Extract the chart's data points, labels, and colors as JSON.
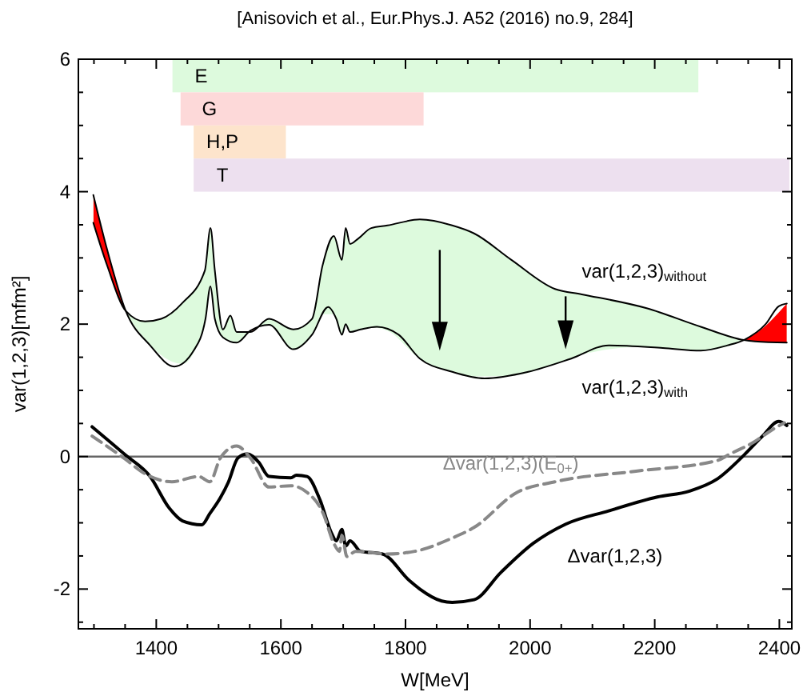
{
  "chart_data": {
    "type": "line",
    "title": "[Anisovich et al., Eur.Phys.J. A52 (2016) no.9, 284]",
    "xlabel": "W[MeV]",
    "ylabel": "var(1,2,3)[mfm²]",
    "xlim": [
      1275,
      2420
    ],
    "ylim": [
      -2.6,
      6
    ],
    "xticks": [
      {
        "value": 1300,
        "label": null
      },
      {
        "value": 1350,
        "label": null
      },
      1400,
      {
        "value": 1450,
        "label": null
      },
      {
        "value": 1500,
        "label": null
      },
      {
        "value": 1550,
        "label": null
      },
      1600,
      {
        "value": 1650,
        "label": null
      },
      {
        "value": 1700,
        "label": null
      },
      {
        "value": 1750,
        "label": null
      },
      1800,
      {
        "value": 1850,
        "label": null
      },
      {
        "value": 1900,
        "label": null
      },
      {
        "value": 1950,
        "label": null
      },
      2000,
      {
        "value": 2050,
        "label": null
      },
      {
        "value": 2100,
        "label": null
      },
      {
        "value": 2150,
        "label": null
      },
      2200,
      {
        "value": 2250,
        "label": null
      },
      {
        "value": 2300,
        "label": null
      },
      {
        "value": 2350,
        "label": null
      },
      2400
    ],
    "yticks": [
      {
        "value": -2.5,
        "label": null
      },
      -2,
      {
        "value": -1.5,
        "label": null
      },
      {
        "value": -1,
        "label": null
      },
      {
        "value": -0.5,
        "label": null
      },
      0,
      {
        "value": 0.5,
        "label": null
      },
      {
        "value": 1,
        "label": null
      },
      {
        "value": 1.5,
        "label": null
      },
      2,
      {
        "value": 2.5,
        "label": null
      },
      {
        "value": 3,
        "label": null
      },
      {
        "value": 3.5,
        "label": null
      },
      4,
      {
        "value": 4.5,
        "label": null
      },
      {
        "value": 5,
        "label": null
      },
      {
        "value": 5.5,
        "label": null
      },
      6
    ],
    "grid": false,
    "legend": false,
    "marker": "none",
    "ref_lines": [
      {
        "axis": "y",
        "value": 0,
        "color": "#666666"
      }
    ],
    "bands": [
      {
        "axis": "x",
        "from": 1426,
        "to": 2270,
        "label": "E",
        "color": "#ddfadd"
      },
      {
        "axis": "x",
        "from": 1439,
        "to": 1829,
        "label": "G",
        "color": "#fdd9d9"
      },
      {
        "axis": "x",
        "from": 1460,
        "to": 1608,
        "label": "H,P",
        "color": "#fde4cc"
      },
      {
        "axis": "x",
        "from": 1460,
        "to": 2416,
        "label": "T",
        "color": "#ede0ef"
      }
    ],
    "series": [
      {
        "name": "var(1,2,3)$_{without}$",
        "color": "#000000",
        "line_style": "solid",
        "x": [
          1299,
          1321,
          1351,
          1382,
          1408,
          1442,
          1478,
          1487,
          1494,
          1507,
          1519,
          1529,
          1551,
          1581,
          1620,
          1650,
          1667,
          1685,
          1698,
          1704,
          1711,
          1724,
          1745,
          1771,
          1823,
          1875,
          1910,
          1970,
          2040,
          2083,
          2187,
          2274,
          2343,
          2361,
          2412
        ],
        "values": [
          3.53,
          2.89,
          2.2,
          2.04,
          2.08,
          2.32,
          2.81,
          3.45,
          2.81,
          1.92,
          2.13,
          1.88,
          1.88,
          2.08,
          1.92,
          2.08,
          2.89,
          3.33,
          2.97,
          3.45,
          3.21,
          3.29,
          3.45,
          3.49,
          3.58,
          3.49,
          3.37,
          2.97,
          2.53,
          2.45,
          2.24,
          1.96,
          1.76,
          1.74,
          1.72
        ],
        "upper": [
          3.53,
          2.89,
          2.2,
          2.04,
          2.08,
          2.32,
          2.81,
          3.45,
          2.81,
          1.92,
          2.13,
          1.88,
          1.88,
          2.08,
          1.92,
          2.08,
          2.89,
          3.33,
          2.97,
          3.45,
          3.21,
          3.29,
          3.45,
          3.49,
          3.58,
          3.49,
          3.37,
          2.97,
          2.53,
          2.45,
          2.24,
          1.96,
          1.76,
          1.74,
          1.72
        ],
        "lower": [
          3.95,
          3.13,
          2.2,
          1.78,
          1.53,
          1.4,
          2.06,
          2.57,
          2.08,
          1.8,
          1.75,
          1.72,
          1.88,
          1.99,
          1.62,
          1.84,
          2.15,
          2.15,
          1.84,
          2.0,
          1.88,
          1.91,
          1.95,
          1.9,
          1.48,
          1.28,
          1.21,
          1.22,
          1.4,
          1.54,
          1.66,
          1.6,
          1.76,
          1.85,
          2.31
        ]
      },
      {
        "name": "var(1,2,3)$_{with}$",
        "color": "#000000",
        "line_style": "solid",
        "x": [
          1299,
          1321,
          1351,
          1390,
          1429,
          1460,
          1479,
          1487,
          1494,
          1507,
          1529,
          1551,
          1581,
          1620,
          1650,
          1676,
          1689,
          1698,
          1704,
          1711,
          1728,
          1754,
          1789,
          1823,
          1875,
          1927,
          1997,
          2066,
          2126,
          2213,
          2274,
          2317,
          2343,
          2378,
          2399,
          2412
        ],
        "values": [
          3.95,
          3.13,
          2.2,
          1.68,
          1.36,
          1.6,
          2.08,
          2.57,
          2.08,
          1.8,
          1.72,
          1.9,
          1.99,
          1.62,
          1.84,
          2.26,
          2.08,
          1.84,
          2.0,
          1.88,
          1.92,
          1.96,
          1.84,
          1.48,
          1.28,
          1.18,
          1.28,
          1.48,
          1.68,
          1.64,
          1.6,
          1.68,
          1.76,
          2.0,
          2.27,
          2.31
        ]
      },
      {
        "name": "Δvar(1,2,3)",
        "color": "#000000",
        "line_style": "solid",
        "x": [
          1297,
          1351,
          1390,
          1421,
          1442,
          1473,
          1486,
          1503,
          1516,
          1531,
          1546,
          1564,
          1581,
          1616,
          1625,
          1642,
          1663,
          1681,
          1689,
          1698,
          1704,
          1711,
          1728,
          1763,
          1806,
          1823,
          1858,
          1875,
          1910,
          1953,
          2005,
          2057,
          2126,
          2204,
          2256,
          2300,
          2343,
          2373,
          2399,
          2412
        ],
        "values": [
          0.45,
          0.02,
          -0.3,
          -0.78,
          -0.97,
          -1.03,
          -0.86,
          -0.62,
          -0.38,
          -0.02,
          0.04,
          -0.08,
          -0.3,
          -0.32,
          -0.28,
          -0.3,
          -0.66,
          -1.15,
          -1.27,
          -1.1,
          -1.35,
          -1.27,
          -1.43,
          -1.47,
          -1.87,
          -2.0,
          -2.18,
          -2.2,
          -2.16,
          -1.75,
          -1.31,
          -1.02,
          -0.82,
          -0.61,
          -0.52,
          -0.34,
          0.02,
          0.31,
          0.53,
          0.47
        ]
      },
      {
        "name": "Δvar(1,2,3)(E$_{0+}$)",
        "color": "#888888",
        "line_style": "dashed",
        "x": [
          1297,
          1349,
          1382,
          1425,
          1468,
          1486,
          1503,
          1529,
          1551,
          1581,
          1616,
          1642,
          1668,
          1685,
          1694,
          1698,
          1706,
          1720,
          1771,
          1815,
          1875,
          1910,
          1979,
          2040,
          2170,
          2300,
          2321,
          2361,
          2386,
          2408
        ],
        "values": [
          0.31,
          -0.03,
          -0.26,
          -0.38,
          -0.3,
          -0.38,
          -0.02,
          0.16,
          -0.02,
          -0.46,
          -0.44,
          -0.54,
          -0.86,
          -1.31,
          -1.43,
          -1.19,
          -1.51,
          -1.43,
          -1.47,
          -1.43,
          -1.23,
          -1.07,
          -0.54,
          -0.38,
          -0.22,
          -0.06,
          0.04,
          0.23,
          0.39,
          0.51
        ]
      }
    ]
  }
}
